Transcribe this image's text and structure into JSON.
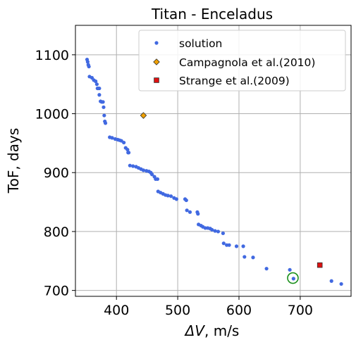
{
  "chart_data": {
    "type": "scatter",
    "title": "Titan - Enceladus",
    "xlabel_symbol": "ΔV",
    "xlabel_unit": ", m/s",
    "ylabel": "ToF, days",
    "xlim": [
      333,
      783
    ],
    "ylim": [
      690,
      1150
    ],
    "xticks": [
      400,
      500,
      600,
      700
    ],
    "yticks": [
      700,
      800,
      900,
      1000,
      1100
    ],
    "grid": true,
    "legend_position": "top-right",
    "series": [
      {
        "name": "solution",
        "marker": "dot",
        "color": "#4169e1",
        "points": [
          [
            352,
            1092
          ],
          [
            353,
            1088
          ],
          [
            354,
            1083
          ],
          [
            355,
            1080
          ],
          [
            356,
            1063
          ],
          [
            360,
            1061
          ],
          [
            363,
            1057
          ],
          [
            366,
            1055
          ],
          [
            368,
            1050
          ],
          [
            369,
            1043
          ],
          [
            370,
            1043
          ],
          [
            372,
            1043
          ],
          [
            372,
            1032
          ],
          [
            374,
            1021
          ],
          [
            376,
            1020
          ],
          [
            378,
            1020
          ],
          [
            379,
            1011
          ],
          [
            380,
            997
          ],
          [
            381,
            987
          ],
          [
            382,
            984
          ],
          [
            389,
            960
          ],
          [
            393,
            959
          ],
          [
            398,
            957
          ],
          [
            402,
            956
          ],
          [
            405,
            955
          ],
          [
            408,
            954
          ],
          [
            412,
            951
          ],
          [
            415,
            942
          ],
          [
            418,
            939
          ],
          [
            419,
            934
          ],
          [
            420,
            934
          ],
          [
            422,
            912
          ],
          [
            427,
            911
          ],
          [
            432,
            910
          ],
          [
            436,
            908
          ],
          [
            440,
            906
          ],
          [
            444,
            904
          ],
          [
            449,
            903
          ],
          [
            453,
            902
          ],
          [
            456,
            900
          ],
          [
            458,
            897
          ],
          [
            462,
            893
          ],
          [
            464,
            889
          ],
          [
            467,
            889
          ],
          [
            468,
            868
          ],
          [
            472,
            866
          ],
          [
            476,
            864
          ],
          [
            480,
            862
          ],
          [
            484,
            861
          ],
          [
            489,
            860
          ],
          [
            494,
            857
          ],
          [
            498,
            855
          ],
          [
            512,
            855
          ],
          [
            514,
            853
          ],
          [
            515,
            836
          ],
          [
            520,
            833
          ],
          [
            532,
            833
          ],
          [
            533,
            830
          ],
          [
            534,
            812
          ],
          [
            538,
            810
          ],
          [
            541,
            808
          ],
          [
            545,
            806
          ],
          [
            549,
            806
          ],
          [
            553,
            805
          ],
          [
            556,
            803
          ],
          [
            561,
            801
          ],
          [
            566,
            800
          ],
          [
            574,
            797
          ],
          [
            575,
            780
          ],
          [
            580,
            777
          ],
          [
            584,
            777
          ],
          [
            596,
            775
          ],
          [
            607,
            775
          ],
          [
            609,
            757
          ],
          [
            623,
            756
          ],
          [
            645,
            737
          ],
          [
            683,
            735
          ],
          [
            689,
            720
          ],
          [
            751,
            716
          ],
          [
            767,
            711
          ]
        ]
      },
      {
        "name": "Campagnola et al.(2010)",
        "marker": "diamond",
        "color": "#f0a000",
        "points": [
          [
            444,
            997
          ]
        ]
      },
      {
        "name": "Strange et al.(2009)",
        "marker": "square",
        "color": "#dd1111",
        "points": [
          [
            732,
            743
          ]
        ]
      }
    ],
    "annotations": [
      {
        "type": "circle",
        "x": 688,
        "y": 721,
        "color": "#1a8f1a"
      }
    ]
  }
}
